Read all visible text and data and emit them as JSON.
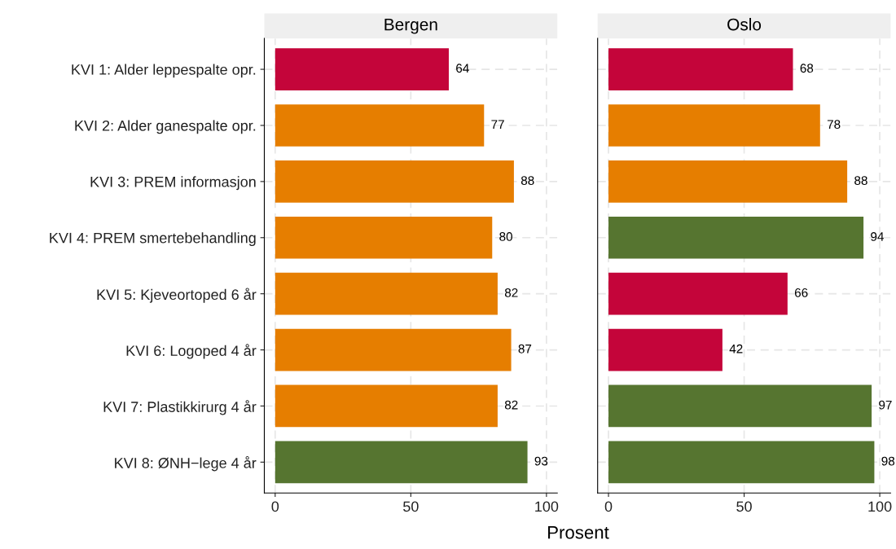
{
  "chart_data": [
    {
      "type": "bar",
      "orientation": "horizontal",
      "title": "Bergen",
      "xlabel": "Prosent",
      "categories": [
        "KVI 1: Alder leppespalte opr.",
        "KVI 2: Alder ganespalte opr.",
        "KVI 3: PREM informasjon",
        "KVI 4: PREM smertebehandling",
        "KVI 5: Kjeveortoped 6 år",
        "KVI 6: Logoped 4 år",
        "KVI 7: Plastikkirurg 4 år",
        "KVI 8: ØNH−lege 4 år"
      ],
      "values": [
        64,
        77,
        88,
        80,
        82,
        87,
        82,
        93
      ],
      "colors": [
        "#c4053a",
        "#e67e00",
        "#e67e00",
        "#e67e00",
        "#e67e00",
        "#e67e00",
        "#e67e00",
        "#567530"
      ],
      "xlim": [
        -4,
        104
      ],
      "xticks": [
        0,
        50,
        100
      ],
      "grid": true,
      "data_labels": true
    },
    {
      "type": "bar",
      "orientation": "horizontal",
      "title": "Oslo",
      "categories": [
        null,
        null,
        null,
        null,
        null,
        null,
        null,
        null
      ],
      "values": [
        68,
        78,
        88,
        94,
        66,
        42,
        97,
        98
      ],
      "colors": [
        "#c4053a",
        "#e67e00",
        "#e67e00",
        "#567530",
        "#c4053a",
        "#c4053a",
        "#567530",
        "#567530"
      ],
      "xlim": [
        -4,
        104
      ],
      "xticks": [
        0,
        50,
        100
      ],
      "grid": true,
      "data_labels": true,
      "tick_labels": "x"
    }
  ]
}
